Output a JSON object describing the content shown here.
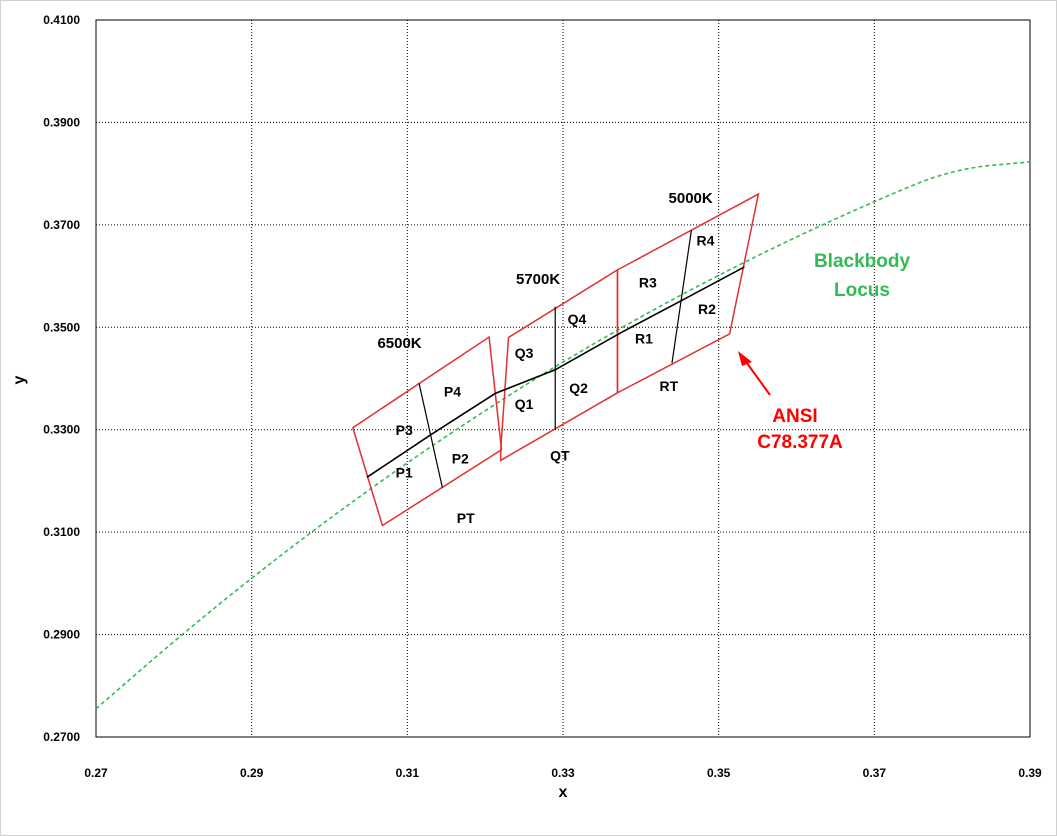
{
  "chart_data": {
    "type": "scatter",
    "title": "",
    "xlabel": "x",
    "ylabel": "y",
    "xlim": [
      0.27,
      0.39
    ],
    "ylim": [
      0.27,
      0.41
    ],
    "x_ticks": [
      "0.27",
      "0.29",
      "0.31",
      "0.33",
      "0.35",
      "0.37",
      "0.39"
    ],
    "y_ticks": [
      "0.2700",
      "0.2900",
      "0.3100",
      "0.3300",
      "0.3500",
      "0.3700",
      "0.3900",
      "0.4100"
    ],
    "grid": "dotted",
    "colors": {
      "quadrangle": "#e03030",
      "locus": "#33bb55",
      "divider": "#000000",
      "ansi": "#ff0000"
    },
    "blackbody_locus": {
      "label_lines": [
        "Blackbody",
        "Locus"
      ],
      "points": [
        [
          0.27,
          0.2755
        ],
        [
          0.28,
          0.2887
        ],
        [
          0.29,
          0.3011
        ],
        [
          0.3,
          0.3127
        ],
        [
          0.31,
          0.3236
        ],
        [
          0.32,
          0.3338
        ],
        [
          0.33,
          0.3433
        ],
        [
          0.34,
          0.3521
        ],
        [
          0.35,
          0.3602
        ],
        [
          0.36,
          0.3677
        ],
        [
          0.37,
          0.3746
        ],
        [
          0.38,
          0.3809
        ],
        [
          0.39,
          0.3823
        ]
      ]
    },
    "quadrangles": [
      {
        "cct": "6500K",
        "corners": [
          [
            0.303,
            0.3304
          ],
          [
            0.3205,
            0.3481
          ],
          [
            0.3221,
            0.3261
          ],
          [
            0.3068,
            0.3113
          ]
        ]
      },
      {
        "cct": "5700K",
        "corners": [
          [
            0.322,
            0.326
          ],
          [
            0.323,
            0.348
          ],
          [
            0.337,
            0.3612
          ],
          [
            0.337,
            0.3372
          ],
          [
            0.322,
            0.324
          ]
        ]
      },
      {
        "cct": "5000K",
        "corners": [
          [
            0.337,
            0.3372
          ],
          [
            0.337,
            0.3612
          ],
          [
            0.3551,
            0.376
          ],
          [
            0.3514,
            0.3487
          ]
        ]
      }
    ],
    "center_line": [
      [
        0.3048,
        0.3207
      ],
      [
        0.313,
        0.329
      ],
      [
        0.3213,
        0.3371
      ],
      [
        0.329,
        0.3417
      ],
      [
        0.3375,
        0.349
      ],
      [
        0.3452,
        0.3552
      ],
      [
        0.3533,
        0.3618
      ]
    ],
    "cross_lines": [
      [
        [
          0.3115,
          0.3391
        ],
        [
          0.3145,
          0.3187
        ]
      ],
      [
        [
          0.329,
          0.354
        ],
        [
          0.329,
          0.33
        ]
      ],
      [
        [
          0.3465,
          0.369
        ],
        [
          0.344,
          0.343
        ]
      ]
    ],
    "bin_labels": [
      "P1",
      "P2",
      "P3",
      "P4",
      "PT",
      "Q1",
      "Q2",
      "Q3",
      "Q4",
      "QT",
      "R1",
      "R2",
      "R3",
      "R4",
      "RT"
    ],
    "cct_labels": [
      "6500K",
      "5700K",
      "5000K"
    ],
    "annotation": {
      "lines": [
        "ANSI",
        "C78.377A"
      ]
    }
  }
}
